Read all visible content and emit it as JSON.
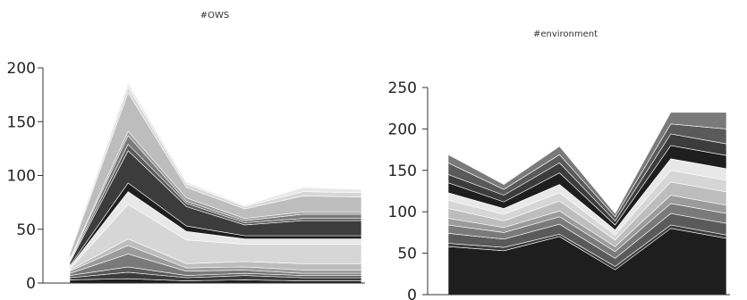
{
  "chart_data": [
    {
      "type": "area",
      "stacked": true,
      "title": "#OWS",
      "xlabel": "",
      "ylabel": "",
      "ylim": [
        0,
        200
      ],
      "yticks": [
        0,
        50,
        100,
        150,
        200
      ],
      "x": [
        1,
        2,
        3,
        4,
        5,
        6
      ],
      "x_tick_labels_visible": false,
      "colors": [
        "#1e1e1e",
        "#3c3c3c",
        "#5a5a5a",
        "#7a7a7a",
        "#9b9b9b",
        "#bdbdbd",
        "#d6d6d6",
        "#e8e8e8"
      ],
      "series": [
        {
          "values": [
            3,
            4,
            2,
            3,
            2,
            2
          ]
        },
        {
          "values": [
            2,
            6,
            3,
            4,
            3,
            3
          ]
        },
        {
          "values": [
            2,
            5,
            2,
            2,
            2,
            2
          ]
        },
        {
          "values": [
            2,
            12,
            4,
            3,
            2,
            2
          ]
        },
        {
          "values": [
            2,
            8,
            3,
            3,
            3,
            3
          ]
        },
        {
          "values": [
            1,
            6,
            4,
            5,
            6,
            6
          ]
        },
        {
          "values": [
            1,
            32,
            22,
            16,
            18,
            18
          ]
        },
        {
          "values": [
            2,
            12,
            8,
            5,
            5,
            5
          ]
        },
        {
          "values": [
            1,
            8,
            5,
            3,
            3,
            3
          ]
        },
        {
          "values": [
            3,
            30,
            18,
            10,
            14,
            14
          ]
        },
        {
          "values": [
            1,
            6,
            3,
            2,
            2,
            2
          ]
        },
        {
          "values": [
            1,
            8,
            2,
            2,
            4,
            4
          ]
        },
        {
          "values": [
            1,
            4,
            3,
            2,
            2,
            2
          ]
        },
        {
          "values": [
            5,
            36,
            10,
            9,
            15,
            14
          ]
        },
        {
          "values": [
            2,
            5,
            3,
            2,
            4,
            4
          ]
        },
        {
          "values": [
            1,
            4,
            2,
            1,
            4,
            3
          ]
        }
      ]
    },
    {
      "type": "area",
      "stacked": true,
      "title": "#environment",
      "xlabel": "",
      "ylabel": "",
      "ylim": [
        0,
        250
      ],
      "yticks": [
        0,
        50,
        100,
        150,
        200,
        250
      ],
      "x": [
        1,
        2,
        3,
        4,
        5,
        6
      ],
      "x_tick_labels_visible": false,
      "colors": [
        "#1e1e1e",
        "#3c3c3c",
        "#5a5a5a",
        "#7a7a7a",
        "#9b9b9b",
        "#bdbdbd",
        "#d6d6d6",
        "#e8e8e8"
      ],
      "series": [
        {
          "values": [
            58,
            53,
            70,
            30,
            80,
            68
          ]
        },
        {
          "values": [
            4,
            4,
            3,
            4,
            4,
            4
          ]
        },
        {
          "values": [
            12,
            10,
            12,
            10,
            14,
            14
          ]
        },
        {
          "values": [
            10,
            8,
            9,
            8,
            12,
            12
          ]
        },
        {
          "values": [
            8,
            6,
            7,
            6,
            10,
            10
          ]
        },
        {
          "values": [
            12,
            8,
            12,
            8,
            16,
            16
          ]
        },
        {
          "values": [
            10,
            8,
            10,
            6,
            14,
            14
          ]
        },
        {
          "values": [
            9,
            7,
            10,
            6,
            14,
            14
          ]
        },
        {
          "values": [
            12,
            8,
            14,
            6,
            16,
            16
          ]
        },
        {
          "values": [
            10,
            8,
            12,
            5,
            14,
            14
          ]
        },
        {
          "values": [
            14,
            7,
            10,
            5,
            12,
            18
          ]
        },
        {
          "values": [
            10,
            6,
            10,
            4,
            14,
            20
          ]
        }
      ]
    }
  ]
}
